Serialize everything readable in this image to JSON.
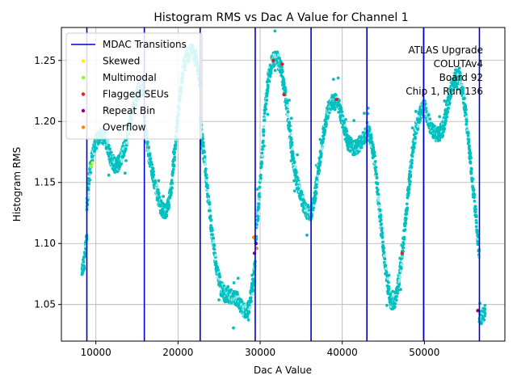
{
  "chart_data": {
    "type": "scatter",
    "title": "Histogram RMS vs Dac A Value for Channel 1",
    "xlabel": "Dac A Value",
    "ylabel": "Histogram RMS",
    "xlim": [
      5800,
      59800
    ],
    "ylim": [
      1.02,
      1.277
    ],
    "xticks": [
      10000,
      20000,
      30000,
      40000,
      50000
    ],
    "xtick_labels": [
      "10000",
      "20000",
      "30000",
      "40000",
      "50000"
    ],
    "yticks": [
      1.05,
      1.1,
      1.15,
      1.2,
      1.25
    ],
    "ytick_labels": [
      "1.05",
      "1.10",
      "1.15",
      "1.20",
      "1.25"
    ],
    "grid": true,
    "annotation": [
      "ATLAS Upgrade",
      "COLUTAv4",
      "Board 92",
      "Chip 1, Run 136"
    ],
    "legend": {
      "placement": "upper-left",
      "entries": [
        {
          "label": "MDAC Transitions",
          "marker": "line",
          "color": "#0000cc"
        },
        {
          "label": "Skewed",
          "marker": "dot",
          "color": "#ffee00"
        },
        {
          "label": "Multimodal",
          "marker": "dot",
          "color": "#88ff22"
        },
        {
          "label": "Flagged SEUs",
          "marker": "dot",
          "color": "#dd2222"
        },
        {
          "label": "Repeat Bin",
          "marker": "dot",
          "color": "#880088"
        },
        {
          "label": "Overflow",
          "marker": "dot",
          "color": "#ff8800"
        }
      ]
    },
    "mdac_transitions": [
      8900,
      15900,
      22700,
      29400,
      36200,
      43000,
      49900,
      56700
    ],
    "series_color": "#00c0c0",
    "series_color_light": "#99e8e8",
    "segments": [
      {
        "x0": 8300,
        "x1": 8900,
        "curve": [
          [
            8300,
            1.077
          ],
          [
            8600,
            1.085
          ],
          [
            8900,
            1.108
          ]
        ]
      },
      {
        "x0": 8900,
        "x1": 15900,
        "curve": [
          [
            8900,
            1.13
          ],
          [
            9300,
            1.16
          ],
          [
            9800,
            1.18
          ],
          [
            10500,
            1.19
          ],
          [
            11200,
            1.185
          ],
          [
            11800,
            1.17
          ],
          [
            12400,
            1.163
          ],
          [
            13000,
            1.168
          ],
          [
            13600,
            1.182
          ],
          [
            14200,
            1.2
          ],
          [
            14700,
            1.215
          ],
          [
            15200,
            1.225
          ],
          [
            15900,
            1.228
          ]
        ]
      },
      {
        "x0": 15900,
        "x1": 22700,
        "curve": [
          [
            15900,
            1.2
          ],
          [
            16400,
            1.175
          ],
          [
            17000,
            1.155
          ],
          [
            17500,
            1.14
          ],
          [
            18000,
            1.128
          ],
          [
            18600,
            1.125
          ],
          [
            19200,
            1.145
          ],
          [
            19700,
            1.185
          ],
          [
            20200,
            1.22
          ],
          [
            20700,
            1.245
          ],
          [
            21200,
            1.255
          ],
          [
            21700,
            1.258
          ],
          [
            22200,
            1.25
          ],
          [
            22700,
            1.23
          ]
        ]
      },
      {
        "x0": 22700,
        "x1": 29400,
        "curve": [
          [
            22700,
            1.2
          ],
          [
            23200,
            1.17
          ],
          [
            23700,
            1.135
          ],
          [
            24200,
            1.105
          ],
          [
            24700,
            1.08
          ],
          [
            25200,
            1.064
          ],
          [
            25800,
            1.057
          ],
          [
            26500,
            1.056
          ],
          [
            27200,
            1.055
          ],
          [
            27800,
            1.047
          ],
          [
            28300,
            1.043
          ],
          [
            28700,
            1.05
          ],
          [
            29100,
            1.065
          ],
          [
            29400,
            1.085
          ]
        ]
      },
      {
        "x0": 29400,
        "x1": 36200,
        "curve": [
          [
            29400,
            1.1
          ],
          [
            29800,
            1.13
          ],
          [
            30200,
            1.17
          ],
          [
            30600,
            1.21
          ],
          [
            31000,
            1.235
          ],
          [
            31500,
            1.25
          ],
          [
            32000,
            1.252
          ],
          [
            32500,
            1.245
          ],
          [
            33000,
            1.225
          ],
          [
            33500,
            1.198
          ],
          [
            34000,
            1.17
          ],
          [
            34500,
            1.15
          ],
          [
            35000,
            1.138
          ],
          [
            35500,
            1.128
          ],
          [
            36000,
            1.124
          ],
          [
            36200,
            1.124
          ]
        ]
      },
      {
        "x0": 36200,
        "x1": 43000,
        "curve": [
          [
            36200,
            1.125
          ],
          [
            36700,
            1.14
          ],
          [
            37200,
            1.165
          ],
          [
            37700,
            1.19
          ],
          [
            38200,
            1.208
          ],
          [
            38700,
            1.216
          ],
          [
            39200,
            1.217
          ],
          [
            39700,
            1.21
          ],
          [
            40200,
            1.195
          ],
          [
            40700,
            1.183
          ],
          [
            41300,
            1.178
          ],
          [
            41900,
            1.18
          ],
          [
            42500,
            1.185
          ],
          [
            43000,
            1.19
          ]
        ]
      },
      {
        "x0": 43000,
        "x1": 49900,
        "curve": [
          [
            43000,
            1.195
          ],
          [
            43500,
            1.185
          ],
          [
            44000,
            1.165
          ],
          [
            44500,
            1.13
          ],
          [
            45000,
            1.095
          ],
          [
            45500,
            1.067
          ],
          [
            46000,
            1.05
          ],
          [
            46500,
            1.055
          ],
          [
            47000,
            1.075
          ],
          [
            47500,
            1.105
          ],
          [
            48000,
            1.14
          ],
          [
            48500,
            1.172
          ],
          [
            49000,
            1.195
          ],
          [
            49500,
            1.207
          ],
          [
            49900,
            1.212
          ]
        ]
      },
      {
        "x0": 49900,
        "x1": 56700,
        "curve": [
          [
            49900,
            1.215
          ],
          [
            50300,
            1.205
          ],
          [
            50800,
            1.195
          ],
          [
            51300,
            1.19
          ],
          [
            51800,
            1.19
          ],
          [
            52300,
            1.195
          ],
          [
            52800,
            1.212
          ],
          [
            53300,
            1.228
          ],
          [
            53800,
            1.237
          ],
          [
            54300,
            1.235
          ],
          [
            54800,
            1.22
          ],
          [
            55300,
            1.19
          ],
          [
            55800,
            1.155
          ],
          [
            56300,
            1.12
          ],
          [
            56700,
            1.09
          ]
        ]
      },
      {
        "x0": 56700,
        "x1": 57400,
        "curve": [
          [
            56700,
            1.04
          ],
          [
            57000,
            1.04
          ],
          [
            57400,
            1.045
          ]
        ]
      }
    ],
    "flagged_points": [
      {
        "x": 9600,
        "y": 1.166,
        "color": "#ffee00"
      },
      {
        "x": 9400,
        "y": 1.163,
        "color": "#88ff22"
      },
      {
        "x": 31600,
        "y": 1.25,
        "color": "#dd2222"
      },
      {
        "x": 32700,
        "y": 1.247,
        "color": "#dd2222"
      },
      {
        "x": 32900,
        "y": 1.222,
        "color": "#dd2222"
      },
      {
        "x": 39300,
        "y": 1.218,
        "color": "#dd2222"
      },
      {
        "x": 47300,
        "y": 1.092,
        "color": "#dd2222"
      },
      {
        "x": 29300,
        "y": 1.092,
        "color": "#880088"
      },
      {
        "x": 29500,
        "y": 1.1,
        "color": "#880088"
      },
      {
        "x": 56500,
        "y": 1.045,
        "color": "#880088"
      },
      {
        "x": 29600,
        "y": 1.096,
        "color": "#ff8800"
      },
      {
        "x": 29200,
        "y": 1.105,
        "color": "#ff8800"
      }
    ]
  }
}
